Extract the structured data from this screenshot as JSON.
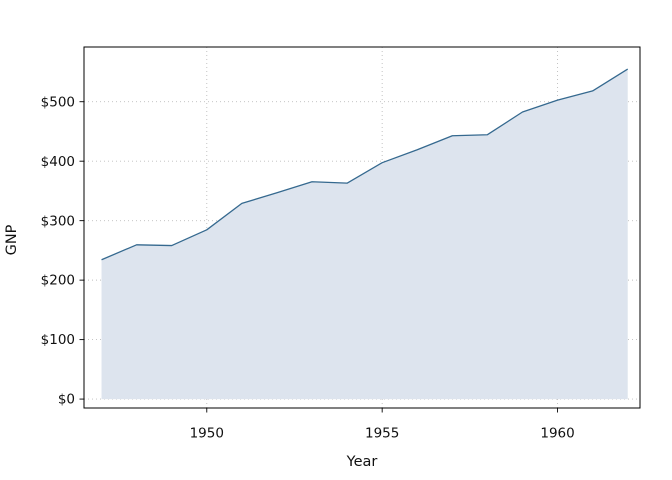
{
  "figure": {
    "background": "#ffffff"
  },
  "chart_data": {
    "type": "area",
    "title": "",
    "xlabel": "Year",
    "ylabel": "GNP",
    "x": [
      1947,
      1948,
      1949,
      1950,
      1951,
      1952,
      1953,
      1954,
      1955,
      1956,
      1957,
      1958,
      1959,
      1960,
      1961,
      1962
    ],
    "series": [
      {
        "name": "GNP",
        "values": [
          234.3,
          259.4,
          258.1,
          284.6,
          329.0,
          347.0,
          365.4,
          363.1,
          397.5,
          419.2,
          442.8,
          444.5,
          482.7,
          502.6,
          518.2,
          554.9
        ]
      }
    ],
    "xlim": [
      1946.5,
      1962.35
    ],
    "ylim": [
      -15,
      592
    ],
    "baseline": 0,
    "x_ticks": [
      {
        "value": 1950,
        "label": "1950"
      },
      {
        "value": 1955,
        "label": "1955"
      },
      {
        "value": 1960,
        "label": "1960"
      }
    ],
    "y_ticks": [
      {
        "value": 0,
        "label": "$0"
      },
      {
        "value": 100,
        "label": "$100"
      },
      {
        "value": 200,
        "label": "$200"
      },
      {
        "value": 300,
        "label": "$300"
      },
      {
        "value": 400,
        "label": "$400"
      },
      {
        "value": 500,
        "label": "$500"
      }
    ],
    "grid": "dotted",
    "legend": "none",
    "colors": {
      "line": "#35698f",
      "fill": "#dde4ee",
      "grid": "#bdbdbd",
      "frame": "#000000",
      "tick": "#000000",
      "text": "#111111",
      "background": "#ffffff"
    }
  }
}
